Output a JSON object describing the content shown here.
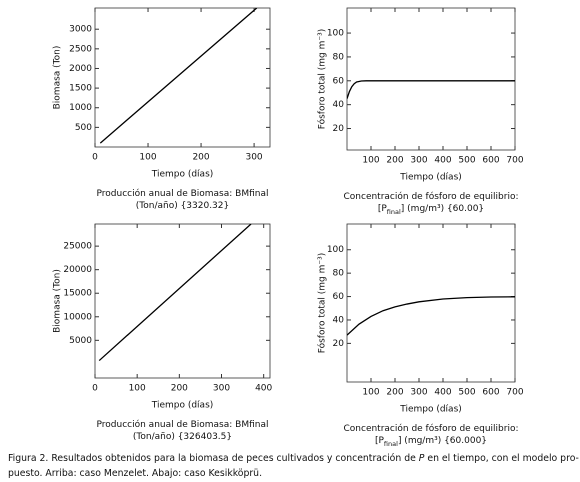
{
  "chart_data": [
    {
      "type": "line",
      "xlabel": "Tiempo (días)",
      "ylabel": "Biomasa (Ton)",
      "x": [
        10,
        305
      ],
      "series": [
        {
          "color": "#000000",
          "values": [
            100,
            3540
          ]
        }
      ],
      "xlim": [
        0,
        330
      ],
      "xticks": [
        0,
        100,
        200,
        300
      ],
      "ylim": [
        0,
        3540
      ],
      "yticks": [
        500,
        1000,
        1500,
        2000,
        2500,
        3000
      ],
      "notes": [
        [
          "Producción anual de Biomasa: BMfinal"
        ],
        [
          "(Ton/año) {3320.32}"
        ]
      ]
    },
    {
      "type": "line",
      "xlabel": "Tiempo (días)",
      "ylabel": "Fósforo total (mg m⁻³)",
      "x": [
        0,
        5,
        10,
        20,
        30,
        40,
        60,
        80,
        100,
        200,
        300,
        400,
        500,
        600,
        700
      ],
      "series": [
        {
          "color": "#000000",
          "values": [
            45,
            48,
            51,
            55,
            57.5,
            59,
            59.8,
            60,
            60,
            60,
            60,
            60,
            60,
            60,
            60
          ]
        }
      ],
      "xlim": [
        0,
        700
      ],
      "xticks": [
        100,
        200,
        300,
        400,
        500,
        600,
        700
      ],
      "ylim": [
        2,
        121
      ],
      "yticks": [
        20,
        40,
        60,
        80,
        100
      ],
      "notes": [
        [
          "Concentración de fósforo de equilibrio:"
        ],
        [
          "[P",
          "final",
          "] (mg/m³) {60.00}"
        ]
      ]
    },
    {
      "type": "line",
      "xlabel": "Tiempo (días)",
      "ylabel": "Biomasa (Ton)",
      "x": [
        10,
        370
      ],
      "series": [
        {
          "color": "#000000",
          "values": [
            700,
            29700
          ]
        }
      ],
      "xlim": [
        0,
        415
      ],
      "xticks": [
        0,
        100,
        200,
        300,
        400
      ],
      "ylim": [
        -3000,
        29700
      ],
      "yticks": [
        5000,
        10000,
        15000,
        20000,
        25000
      ],
      "notes": [
        [
          "Producción anual de Biomasa: BMfinal"
        ],
        [
          "(Ton/año) {326403.5}"
        ]
      ]
    },
    {
      "type": "line",
      "xlabel": "Tiempo (días)",
      "ylabel": "Fósforo total (mg m⁻³)",
      "x": [
        0,
        50,
        100,
        150,
        200,
        250,
        300,
        400,
        500,
        600,
        700
      ],
      "series": [
        {
          "color": "#000000",
          "values": [
            27,
            36.4,
            43,
            47.9,
            51.2,
            53.6,
            55.5,
            57.9,
            59.1,
            59.6,
            59.8
          ]
        }
      ],
      "xlim": [
        0,
        700
      ],
      "xticks": [
        100,
        200,
        300,
        400,
        500,
        600,
        700
      ],
      "ylim": [
        -13,
        122
      ],
      "yticks": [
        20,
        40,
        60,
        80,
        100
      ],
      "notes": [
        [
          "Concentración de fósforo de equilibrio:"
        ],
        [
          "[P",
          "final",
          "] (mg/m³) {60.000}"
        ]
      ]
    }
  ],
  "caption": [
    [
      "Figura 2. Resultados obtenidos para la biomasa de peces cultivados y concentración de ",
      "P",
      " en el tiempo, con el modelo pro-"
    ],
    [
      "puesto. Arriba: caso Menzelet. Abajo: caso Kesikköprü."
    ]
  ]
}
